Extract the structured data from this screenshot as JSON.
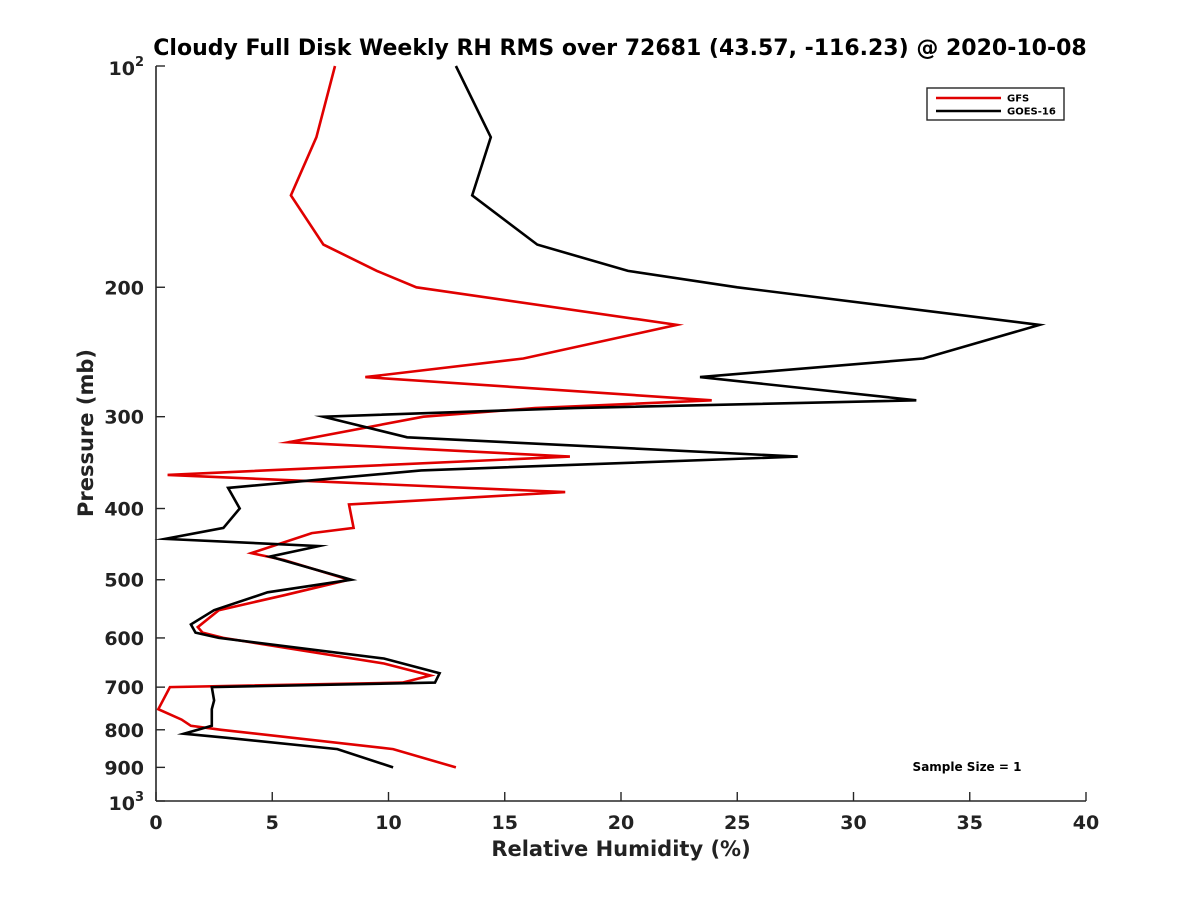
{
  "chart_data": {
    "type": "line",
    "title": "Cloudy Full Disk Weekly RH RMS over 72681 (43.57, -116.23) @ 2020-10-08",
    "xlabel": "Relative Humidity (%)",
    "ylabel": "Pressure (mb)",
    "xlim": [
      0,
      40
    ],
    "ylim": [
      100,
      1000
    ],
    "y_scale": "log",
    "y_reversed": true,
    "x_ticks": [
      0,
      5,
      10,
      15,
      20,
      25,
      30,
      35,
      40
    ],
    "x_tick_labels": [
      "0",
      "5",
      "10",
      "15",
      "20",
      "25",
      "30",
      "35",
      "40"
    ],
    "y_ticks": [
      200,
      300,
      400,
      500,
      600,
      700,
      800,
      900
    ],
    "y_tick_labels": [
      "200",
      "300",
      "400",
      "500",
      "600",
      "700",
      "800",
      "900"
    ],
    "y_end_labels": [
      {
        "value": 100,
        "base": "10",
        "exponent": "2"
      },
      {
        "value": 1000,
        "base": "10",
        "exponent": "3"
      }
    ],
    "grid": false,
    "legend_position": "top-right",
    "annotation": "Sample Size = 1",
    "series": [
      {
        "name": "GFS",
        "color": "#e00000",
        "points": [
          [
            7.7,
            100
          ],
          [
            6.9,
            125
          ],
          [
            5.8,
            150
          ],
          [
            7.2,
            175
          ],
          [
            9.5,
            190
          ],
          [
            11.2,
            200
          ],
          [
            22.4,
            225
          ],
          [
            15.8,
            250
          ],
          [
            9.0,
            265
          ],
          [
            23.9,
            285
          ],
          [
            16.3,
            292
          ],
          [
            11.5,
            300
          ],
          [
            5.7,
            325
          ],
          [
            17.8,
            340
          ],
          [
            0.5,
            360
          ],
          [
            17.6,
            380
          ],
          [
            8.3,
            395
          ],
          [
            8.5,
            425
          ],
          [
            6.7,
            432
          ],
          [
            4.1,
            460
          ],
          [
            5.5,
            470
          ],
          [
            8.3,
            500
          ],
          [
            5.5,
            525
          ],
          [
            2.7,
            550
          ],
          [
            1.8,
            580
          ],
          [
            2.0,
            590
          ],
          [
            2.9,
            600
          ],
          [
            9.8,
            650
          ],
          [
            11.8,
            675
          ],
          [
            10.6,
            690
          ],
          [
            0.6,
            700
          ],
          [
            0.1,
            750
          ],
          [
            1.1,
            775
          ],
          [
            1.5,
            790
          ],
          [
            2.8,
            800
          ],
          [
            10.2,
            850
          ],
          [
            12.9,
            900
          ]
        ]
      },
      {
        "name": "GOES-16",
        "color": "#000000",
        "points": [
          [
            12.9,
            100
          ],
          [
            14.4,
            125
          ],
          [
            13.6,
            150
          ],
          [
            16.4,
            175
          ],
          [
            20.3,
            190
          ],
          [
            25.0,
            200
          ],
          [
            38.0,
            225
          ],
          [
            33.0,
            250
          ],
          [
            23.4,
            265
          ],
          [
            32.7,
            285
          ],
          [
            18.0,
            292
          ],
          [
            7.2,
            300
          ],
          [
            10.8,
            320
          ],
          [
            27.6,
            340
          ],
          [
            11.4,
            355
          ],
          [
            3.1,
            375
          ],
          [
            3.6,
            400
          ],
          [
            2.9,
            425
          ],
          [
            0.4,
            440
          ],
          [
            7.0,
            450
          ],
          [
            4.9,
            465
          ],
          [
            8.4,
            500
          ],
          [
            4.8,
            520
          ],
          [
            2.5,
            550
          ],
          [
            1.5,
            575
          ],
          [
            1.7,
            590
          ],
          [
            2.7,
            600
          ],
          [
            9.8,
            640
          ],
          [
            12.2,
            670
          ],
          [
            12.0,
            690
          ],
          [
            2.4,
            700
          ],
          [
            2.5,
            730
          ],
          [
            2.4,
            750
          ],
          [
            2.4,
            775
          ],
          [
            2.4,
            790
          ],
          [
            1.2,
            810
          ],
          [
            3.0,
            820
          ],
          [
            7.8,
            850
          ],
          [
            10.2,
            900
          ]
        ]
      }
    ]
  }
}
